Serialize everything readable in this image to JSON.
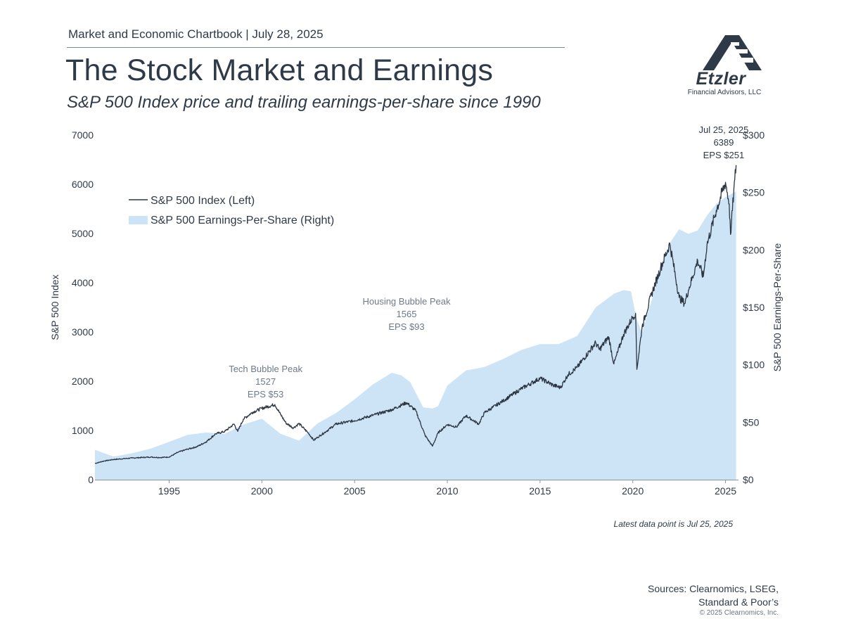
{
  "header": {
    "top": "Market and Economic Chartbook | July 28, 2025",
    "title": "The Stock Market and Earnings",
    "subtitle": "S&P 500 Index price and trailing earnings-per-share since 1990"
  },
  "logo": {
    "name": "Etzler",
    "sub": "Financial Advisors, LLC"
  },
  "footer": {
    "note": "Latest data point is Jul 25, 2025",
    "sources_line1": "Sources: Clearnomics, LSEG,",
    "sources_line2": "Standard & Poor’s",
    "copyright": "© 2025 Clearnomics, Inc."
  },
  "colors": {
    "text": "#2f3a48",
    "index_line": "#2c3643",
    "eps_fill": "#cde4f6",
    "annotation": "#6d7a89"
  },
  "chart_data": {
    "type": "line",
    "ylabel": "S&P 500 Index",
    "y2label": "S&P 500 Earnings-Per-Share",
    "xlim": [
      1991,
      2025.7
    ],
    "ylim": [
      0,
      7000
    ],
    "y2lim": [
      0,
      300
    ],
    "xticks": [
      "1995",
      "2000",
      "2005",
      "2010",
      "2015",
      "2020",
      "2025"
    ],
    "yticks": [
      "0",
      "1000",
      "2000",
      "3000",
      "4000",
      "5000",
      "6000",
      "7000"
    ],
    "y2ticks": [
      "$0",
      "$50",
      "$100",
      "$150",
      "$200",
      "$250",
      "$300"
    ],
    "legend": {
      "position": "top-left",
      "index_label": "S&P 500 Index (Left)",
      "eps_label": "S&P 500 Earnings-Per-Share (Right)"
    },
    "series": [
      {
        "name": "S&P 500 Index (Left)",
        "axis": "left",
        "style": "line",
        "points": [
          [
            1991,
            330
          ],
          [
            1991.5,
            380
          ],
          [
            1992,
            410
          ],
          [
            1993,
            440
          ],
          [
            1994,
            460
          ],
          [
            1994.5,
            450
          ],
          [
            1995,
            460
          ],
          [
            1995.5,
            560
          ],
          [
            1996,
            620
          ],
          [
            1996.5,
            670
          ],
          [
            1997,
            770
          ],
          [
            1997.5,
            930
          ],
          [
            1998,
            980
          ],
          [
            1998.5,
            1130
          ],
          [
            1998.7,
            980
          ],
          [
            1999,
            1230
          ],
          [
            1999.5,
            1370
          ],
          [
            2000,
            1450
          ],
          [
            2000.7,
            1527
          ],
          [
            2001,
            1330
          ],
          [
            2001.3,
            1150
          ],
          [
            2001.7,
            1050
          ],
          [
            2002,
            1140
          ],
          [
            2002.5,
            950
          ],
          [
            2002.8,
            800
          ],
          [
            2003,
            860
          ],
          [
            2003.5,
            990
          ],
          [
            2004,
            1130
          ],
          [
            2005,
            1200
          ],
          [
            2006,
            1310
          ],
          [
            2007,
            1420
          ],
          [
            2007.8,
            1565
          ],
          [
            2008.3,
            1400
          ],
          [
            2008.8,
            900
          ],
          [
            2009.2,
            680
          ],
          [
            2009.5,
            950
          ],
          [
            2010,
            1120
          ],
          [
            2010.5,
            1070
          ],
          [
            2011,
            1300
          ],
          [
            2011.7,
            1130
          ],
          [
            2012,
            1360
          ],
          [
            2013,
            1600
          ],
          [
            2014,
            1850
          ],
          [
            2015,
            2060
          ],
          [
            2015.7,
            1920
          ],
          [
            2016.1,
            1870
          ],
          [
            2016.5,
            2130
          ],
          [
            2017,
            2280
          ],
          [
            2018,
            2780
          ],
          [
            2018.2,
            2640
          ],
          [
            2018.7,
            2900
          ],
          [
            2018.98,
            2350
          ],
          [
            2019.5,
            2950
          ],
          [
            2020,
            3300
          ],
          [
            2020.15,
            3380
          ],
          [
            2020.22,
            2240
          ],
          [
            2020.5,
            3100
          ],
          [
            2021,
            3750
          ],
          [
            2021.5,
            4300
          ],
          [
            2022,
            4790
          ],
          [
            2022.5,
            3700
          ],
          [
            2022.8,
            3580
          ],
          [
            2023,
            3850
          ],
          [
            2023.5,
            4450
          ],
          [
            2023.8,
            4120
          ],
          [
            2024,
            4770
          ],
          [
            2024.5,
            5470
          ],
          [
            2025,
            6040
          ],
          [
            2025.2,
            5600
          ],
          [
            2025.27,
            4980
          ],
          [
            2025.5,
            6100
          ],
          [
            2025.57,
            6389
          ]
        ]
      },
      {
        "name": "S&P 500 Earnings-Per-Share (Right)",
        "axis": "right",
        "style": "area",
        "points": [
          [
            1991,
            26
          ],
          [
            1992,
            20
          ],
          [
            1993,
            23
          ],
          [
            1994,
            27
          ],
          [
            1995,
            33
          ],
          [
            1996,
            39
          ],
          [
            1997,
            41
          ],
          [
            1998,
            40
          ],
          [
            1999,
            48
          ],
          [
            2000,
            53
          ],
          [
            2001,
            40
          ],
          [
            2002,
            34
          ],
          [
            2003,
            49
          ],
          [
            2004,
            58
          ],
          [
            2005,
            70
          ],
          [
            2006,
            83
          ],
          [
            2007,
            93
          ],
          [
            2007.5,
            91
          ],
          [
            2008,
            85
          ],
          [
            2008.7,
            63
          ],
          [
            2009.2,
            62
          ],
          [
            2009.5,
            64
          ],
          [
            2010,
            82
          ],
          [
            2011,
            95
          ],
          [
            2012,
            98
          ],
          [
            2013,
            105
          ],
          [
            2014,
            113
          ],
          [
            2015,
            118
          ],
          [
            2016,
            118
          ],
          [
            2017,
            125
          ],
          [
            2018,
            150
          ],
          [
            2019,
            162
          ],
          [
            2019.5,
            165
          ],
          [
            2019.9,
            164
          ],
          [
            2020.2,
            140
          ],
          [
            2020.5,
            128
          ],
          [
            2021,
            155
          ],
          [
            2021.5,
            185
          ],
          [
            2022,
            206
          ],
          [
            2022.5,
            218
          ],
          [
            2023,
            214
          ],
          [
            2023.5,
            217
          ],
          [
            2024,
            230
          ],
          [
            2024.5,
            240
          ],
          [
            2025,
            246
          ],
          [
            2025.57,
            251
          ]
        ]
      }
    ],
    "annotations": [
      {
        "line1": "Tech Bubble Peak",
        "line2": "1527",
        "line3": "EPS $53",
        "x": 2000.2,
        "y": 1527
      },
      {
        "line1": "Housing Bubble Peak",
        "line2": "1565",
        "line3": "EPS $93",
        "x": 2007.8,
        "y": 2900
      },
      {
        "line1": "Jul 25, 2025",
        "line2": "6389",
        "line3": "EPS $251",
        "x": 2024.9,
        "y": 6389
      }
    ]
  }
}
